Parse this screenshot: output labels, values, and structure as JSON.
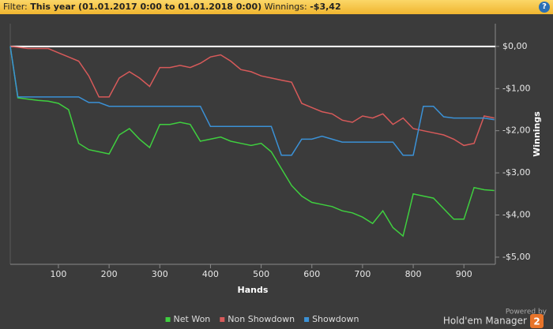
{
  "header": {
    "filter_label": "Filter:",
    "filter_value": "This year (01.01.2017 0:00 to 01.01.2018 0:00)",
    "winnings_label": "Winnings:",
    "winnings_value": "-$3,42",
    "help": "?"
  },
  "chart_data": {
    "type": "line",
    "x_label": "Hands",
    "y_label": "Winnings",
    "x": [
      5,
      20,
      40,
      60,
      80,
      100,
      120,
      140,
      160,
      180,
      200,
      220,
      240,
      260,
      280,
      300,
      320,
      340,
      360,
      380,
      400,
      420,
      440,
      460,
      480,
      500,
      520,
      540,
      560,
      580,
      600,
      620,
      640,
      660,
      680,
      700,
      720,
      740,
      760,
      780,
      800,
      820,
      840,
      860,
      880,
      900,
      920,
      940,
      960
    ],
    "series": [
      {
        "name": "Net Won",
        "color": "#3fcf3f",
        "values": [
          0,
          -1.22,
          -1.25,
          -1.28,
          -1.3,
          -1.35,
          -1.5,
          -2.3,
          -2.45,
          -2.5,
          -2.55,
          -2.1,
          -1.95,
          -2.2,
          -2.4,
          -1.85,
          -1.85,
          -1.8,
          -1.85,
          -2.25,
          -2.2,
          -2.15,
          -2.25,
          -2.3,
          -2.35,
          -2.3,
          -2.5,
          -2.9,
          -3.3,
          -3.55,
          -3.7,
          -3.75,
          -3.8,
          -3.9,
          -3.95,
          -4.05,
          -4.2,
          -3.9,
          -4.3,
          -4.5,
          -3.5,
          -3.55,
          -3.6,
          -3.85,
          -4.1,
          -4.1,
          -3.35,
          -3.4,
          -3.42
        ]
      },
      {
        "name": "Non Showdown",
        "color": "#d85a5a",
        "values": [
          0,
          -0.02,
          -0.05,
          -0.05,
          -0.05,
          -0.15,
          -0.25,
          -0.35,
          -0.7,
          -1.2,
          -1.2,
          -0.75,
          -0.6,
          -0.75,
          -0.95,
          -0.5,
          -0.5,
          -0.45,
          -0.5,
          -0.4,
          -0.25,
          -0.2,
          -0.35,
          -0.55,
          -0.6,
          -0.7,
          -0.75,
          -0.8,
          -0.85,
          -1.35,
          -1.45,
          -1.55,
          -1.6,
          -1.75,
          -1.8,
          -1.65,
          -1.7,
          -1.6,
          -1.85,
          -1.7,
          -1.95,
          -2.0,
          -2.05,
          -2.1,
          -2.2,
          -2.35,
          -2.3,
          -1.65,
          -1.7
        ]
      },
      {
        "name": "Showdown",
        "color": "#3b91d6",
        "values": [
          0,
          -1.2,
          -1.2,
          -1.2,
          -1.2,
          -1.2,
          -1.2,
          -1.2,
          -1.33,
          -1.33,
          -1.42,
          -1.42,
          -1.42,
          -1.42,
          -1.42,
          -1.42,
          -1.42,
          -1.42,
          -1.42,
          -1.42,
          -1.9,
          -1.9,
          -1.9,
          -1.9,
          -1.9,
          -1.9,
          -1.9,
          -2.58,
          -2.58,
          -2.2,
          -2.2,
          -2.13,
          -2.2,
          -2.27,
          -2.27,
          -2.27,
          -2.27,
          -2.27,
          -2.27,
          -2.58,
          -2.58,
          -1.42,
          -1.42,
          -1.67,
          -1.7,
          -1.7,
          -1.7,
          -1.7,
          -1.74
        ]
      }
    ],
    "xlim": [
      5,
      962
    ],
    "ylim": [
      -5.17,
      0.54
    ],
    "xticks": [
      100,
      200,
      300,
      400,
      500,
      600,
      700,
      800,
      900
    ],
    "yticks": [
      {
        "value": 0,
        "label": "$0,00"
      },
      {
        "value": -1,
        "label": "-$1,00"
      },
      {
        "value": -2,
        "label": "-$2,00"
      },
      {
        "value": -3,
        "label": "-$3,00"
      },
      {
        "value": -4,
        "label": "-$4,00"
      },
      {
        "value": -5,
        "label": "-$5,00"
      }
    ],
    "zero_line_color": "#ffffff",
    "legend": "bottom"
  },
  "branding": {
    "powered_by": "Powered by",
    "product": "Hold'em Manager",
    "version": "2"
  }
}
